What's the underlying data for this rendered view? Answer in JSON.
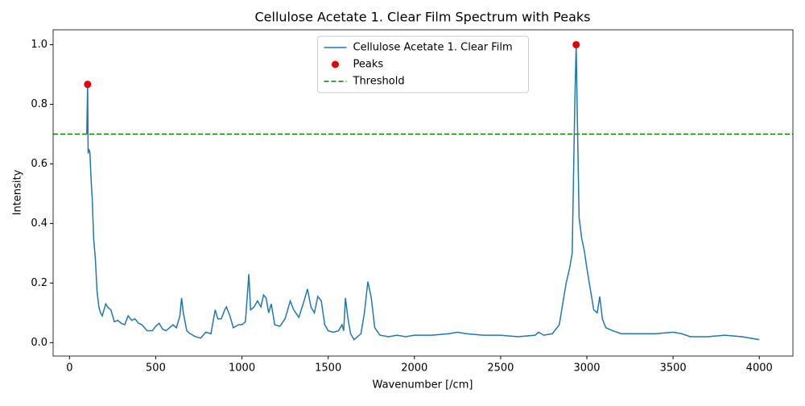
{
  "chart_data": {
    "type": "line",
    "title": "Cellulose Acetate 1. Clear Film Spectrum with Peaks",
    "x_label": "Wavenumber [/cm]",
    "y_label": "Intensity",
    "xlim": [
      -95,
      4195
    ],
    "ylim": [
      -0.045,
      1.05
    ],
    "xticks": [
      0,
      500,
      1000,
      1500,
      2000,
      2500,
      3000,
      3500,
      4000
    ],
    "yticks": [
      {
        "value": 0,
        "label": "0.0"
      },
      {
        "value": 0.2,
        "label": "0.2"
      },
      {
        "value": 0.4,
        "label": "0.4"
      },
      {
        "value": 0.6,
        "label": "0.6"
      },
      {
        "value": 0.8,
        "label": "0.8"
      },
      {
        "value": 1,
        "label": "1.0"
      }
    ],
    "legend": "upper center",
    "series": [
      {
        "name": "Cellulose Acetate 1. Clear Film",
        "color": "#1f77b4",
        "x": [
          100,
          105,
          108,
          112,
          118,
          125,
          132,
          140,
          150,
          160,
          170,
          180,
          190,
          200,
          210,
          220,
          240,
          260,
          280,
          300,
          320,
          340,
          360,
          380,
          400,
          420,
          450,
          480,
          500,
          520,
          540,
          560,
          580,
          600,
          620,
          640,
          650,
          660,
          680,
          700,
          730,
          760,
          790,
          820,
          845,
          860,
          880,
          900,
          910,
          930,
          950,
          980,
          1000,
          1020,
          1040,
          1050,
          1070,
          1090,
          1110,
          1125,
          1140,
          1155,
          1170,
          1190,
          1220,
          1250,
          1280,
          1300,
          1330,
          1360,
          1380,
          1400,
          1420,
          1440,
          1460,
          1480,
          1500,
          1530,
          1560,
          1580,
          1590,
          1600,
          1615,
          1630,
          1650,
          1670,
          1690,
          1710,
          1730,
          1750,
          1770,
          1800,
          1850,
          1900,
          1950,
          2000,
          2100,
          2200,
          2250,
          2300,
          2400,
          2500,
          2600,
          2700,
          2720,
          2750,
          2800,
          2840,
          2860,
          2880,
          2900,
          2915,
          2930,
          2938,
          2945,
          2955,
          2970,
          2985,
          3000,
          3020,
          3040,
          3060,
          3075,
          3090,
          3110,
          3150,
          3200,
          3300,
          3400,
          3500,
          3550,
          3600,
          3700,
          3800,
          3900,
          4000
        ],
        "values": [
          0.7,
          0.867,
          0.635,
          0.65,
          0.64,
          0.55,
          0.48,
          0.35,
          0.28,
          0.17,
          0.12,
          0.1,
          0.09,
          0.11,
          0.13,
          0.12,
          0.11,
          0.07,
          0.075,
          0.065,
          0.06,
          0.09,
          0.075,
          0.08,
          0.065,
          0.06,
          0.04,
          0.04,
          0.055,
          0.065,
          0.045,
          0.04,
          0.05,
          0.06,
          0.05,
          0.09,
          0.15,
          0.1,
          0.04,
          0.03,
          0.02,
          0.015,
          0.035,
          0.03,
          0.11,
          0.08,
          0.08,
          0.11,
          0.12,
          0.09,
          0.05,
          0.06,
          0.06,
          0.07,
          0.23,
          0.11,
          0.12,
          0.14,
          0.12,
          0.16,
          0.15,
          0.1,
          0.13,
          0.06,
          0.055,
          0.08,
          0.14,
          0.11,
          0.085,
          0.14,
          0.18,
          0.12,
          0.1,
          0.155,
          0.14,
          0.06,
          0.04,
          0.035,
          0.04,
          0.06,
          0.04,
          0.15,
          0.08,
          0.03,
          0.01,
          0.02,
          0.03,
          0.1,
          0.205,
          0.15,
          0.05,
          0.025,
          0.02,
          0.025,
          0.02,
          0.025,
          0.025,
          0.03,
          0.035,
          0.03,
          0.025,
          0.025,
          0.02,
          0.025,
          0.035,
          0.025,
          0.03,
          0.06,
          0.13,
          0.2,
          0.25,
          0.3,
          0.8,
          1.0,
          0.75,
          0.42,
          0.35,
          0.31,
          0.25,
          0.18,
          0.11,
          0.1,
          0.155,
          0.08,
          0.05,
          0.04,
          0.03,
          0.03,
          0.03,
          0.035,
          0.03,
          0.02,
          0.02,
          0.025,
          0.02,
          0.01
        ]
      },
      {
        "name": "Peaks",
        "type": "scatter",
        "color": "#e60000",
        "x": [
          105,
          2938
        ],
        "values": [
          0.867,
          1.0
        ]
      }
    ],
    "threshold": {
      "name": "Threshold",
      "value": 0.7,
      "color": "#008000"
    }
  }
}
